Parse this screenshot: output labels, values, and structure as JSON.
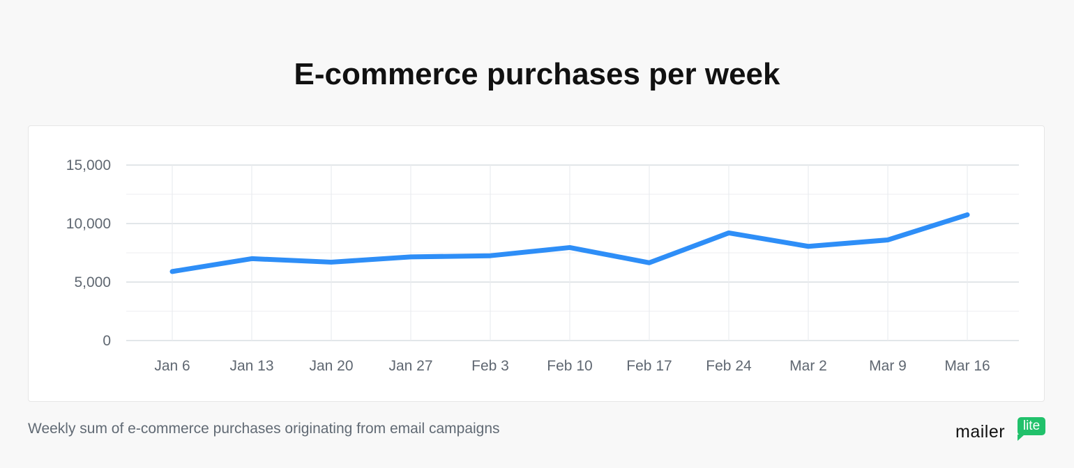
{
  "title": "E-commerce purchases per week",
  "caption": "Weekly sum of e-commerce purchases originating from email campaigns",
  "logo": {
    "word": "mailer",
    "badge": "lite",
    "badge_color": "#21c16b"
  },
  "colors": {
    "line": "#2e8ef7",
    "grid": "#e3e6ea",
    "tick_text": "#5f6771"
  },
  "chart_data": {
    "type": "line",
    "title": "E-commerce purchases per week",
    "xlabel": "",
    "ylabel": "",
    "categories": [
      "Jan 6",
      "Jan 13",
      "Jan 20",
      "Jan 27",
      "Feb 3",
      "Feb 10",
      "Feb 17",
      "Feb 24",
      "Mar 2",
      "Mar 9",
      "Mar 16"
    ],
    "series": [
      {
        "values": [
          5900,
          7000,
          6700,
          7150,
          7250,
          7950,
          6650,
          9200,
          8050,
          8600,
          10750
        ],
        "color": "#2e8ef7"
      }
    ],
    "ylim": [
      0,
      15000
    ],
    "yticks": [
      0,
      5000,
      10000,
      15000
    ],
    "ytick_labels": [
      "0",
      "5,000",
      "10,000",
      "15,000"
    ],
    "grid": true,
    "legend": "none"
  }
}
